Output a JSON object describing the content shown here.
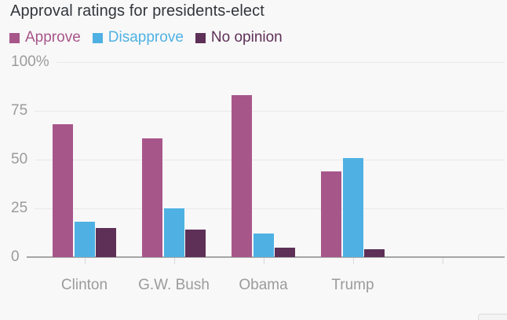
{
  "title": "Approval ratings for presidents-elect",
  "colors": {
    "background": "#f8f8f8",
    "title_text": "#32363b",
    "axis_text": "#9b9b9b",
    "gridline": "#e9e9e9",
    "axis_line": "#a6a6a6",
    "approve": "#a7568a",
    "disapprove": "#4fb1e3",
    "no_opinion": "#5e3057"
  },
  "legend": [
    {
      "label": "Approve",
      "color": "#a7568a"
    },
    {
      "label": "Disapprove",
      "color": "#4fb1e3"
    },
    {
      "label": "No opinion",
      "color": "#5e3057"
    }
  ],
  "chart_data": {
    "type": "bar",
    "title": "Approval ratings for presidents-elect",
    "categories": [
      "Clinton",
      "G.W. Bush",
      "Obama",
      "Trump"
    ],
    "series": [
      {
        "name": "Approve",
        "color": "#a7568a",
        "values": [
          68,
          61,
          83,
          44
        ]
      },
      {
        "name": "Disapprove",
        "color": "#4fb1e3",
        "values": [
          18,
          25,
          12,
          51
        ]
      },
      {
        "name": "No opinion",
        "color": "#5e3057",
        "values": [
          15,
          14,
          5,
          4
        ]
      }
    ],
    "xlabel": "",
    "ylabel": "",
    "ylim": [
      0,
      100
    ],
    "y_axis": [
      {
        "label": "100%",
        "value": 100
      },
      {
        "label": "75",
        "value": 75
      },
      {
        "label": "50",
        "value": 50
      },
      {
        "label": "25",
        "value": 25
      },
      {
        "label": "0",
        "value": 0
      }
    ],
    "grid": true,
    "legend_position": "top-left"
  }
}
